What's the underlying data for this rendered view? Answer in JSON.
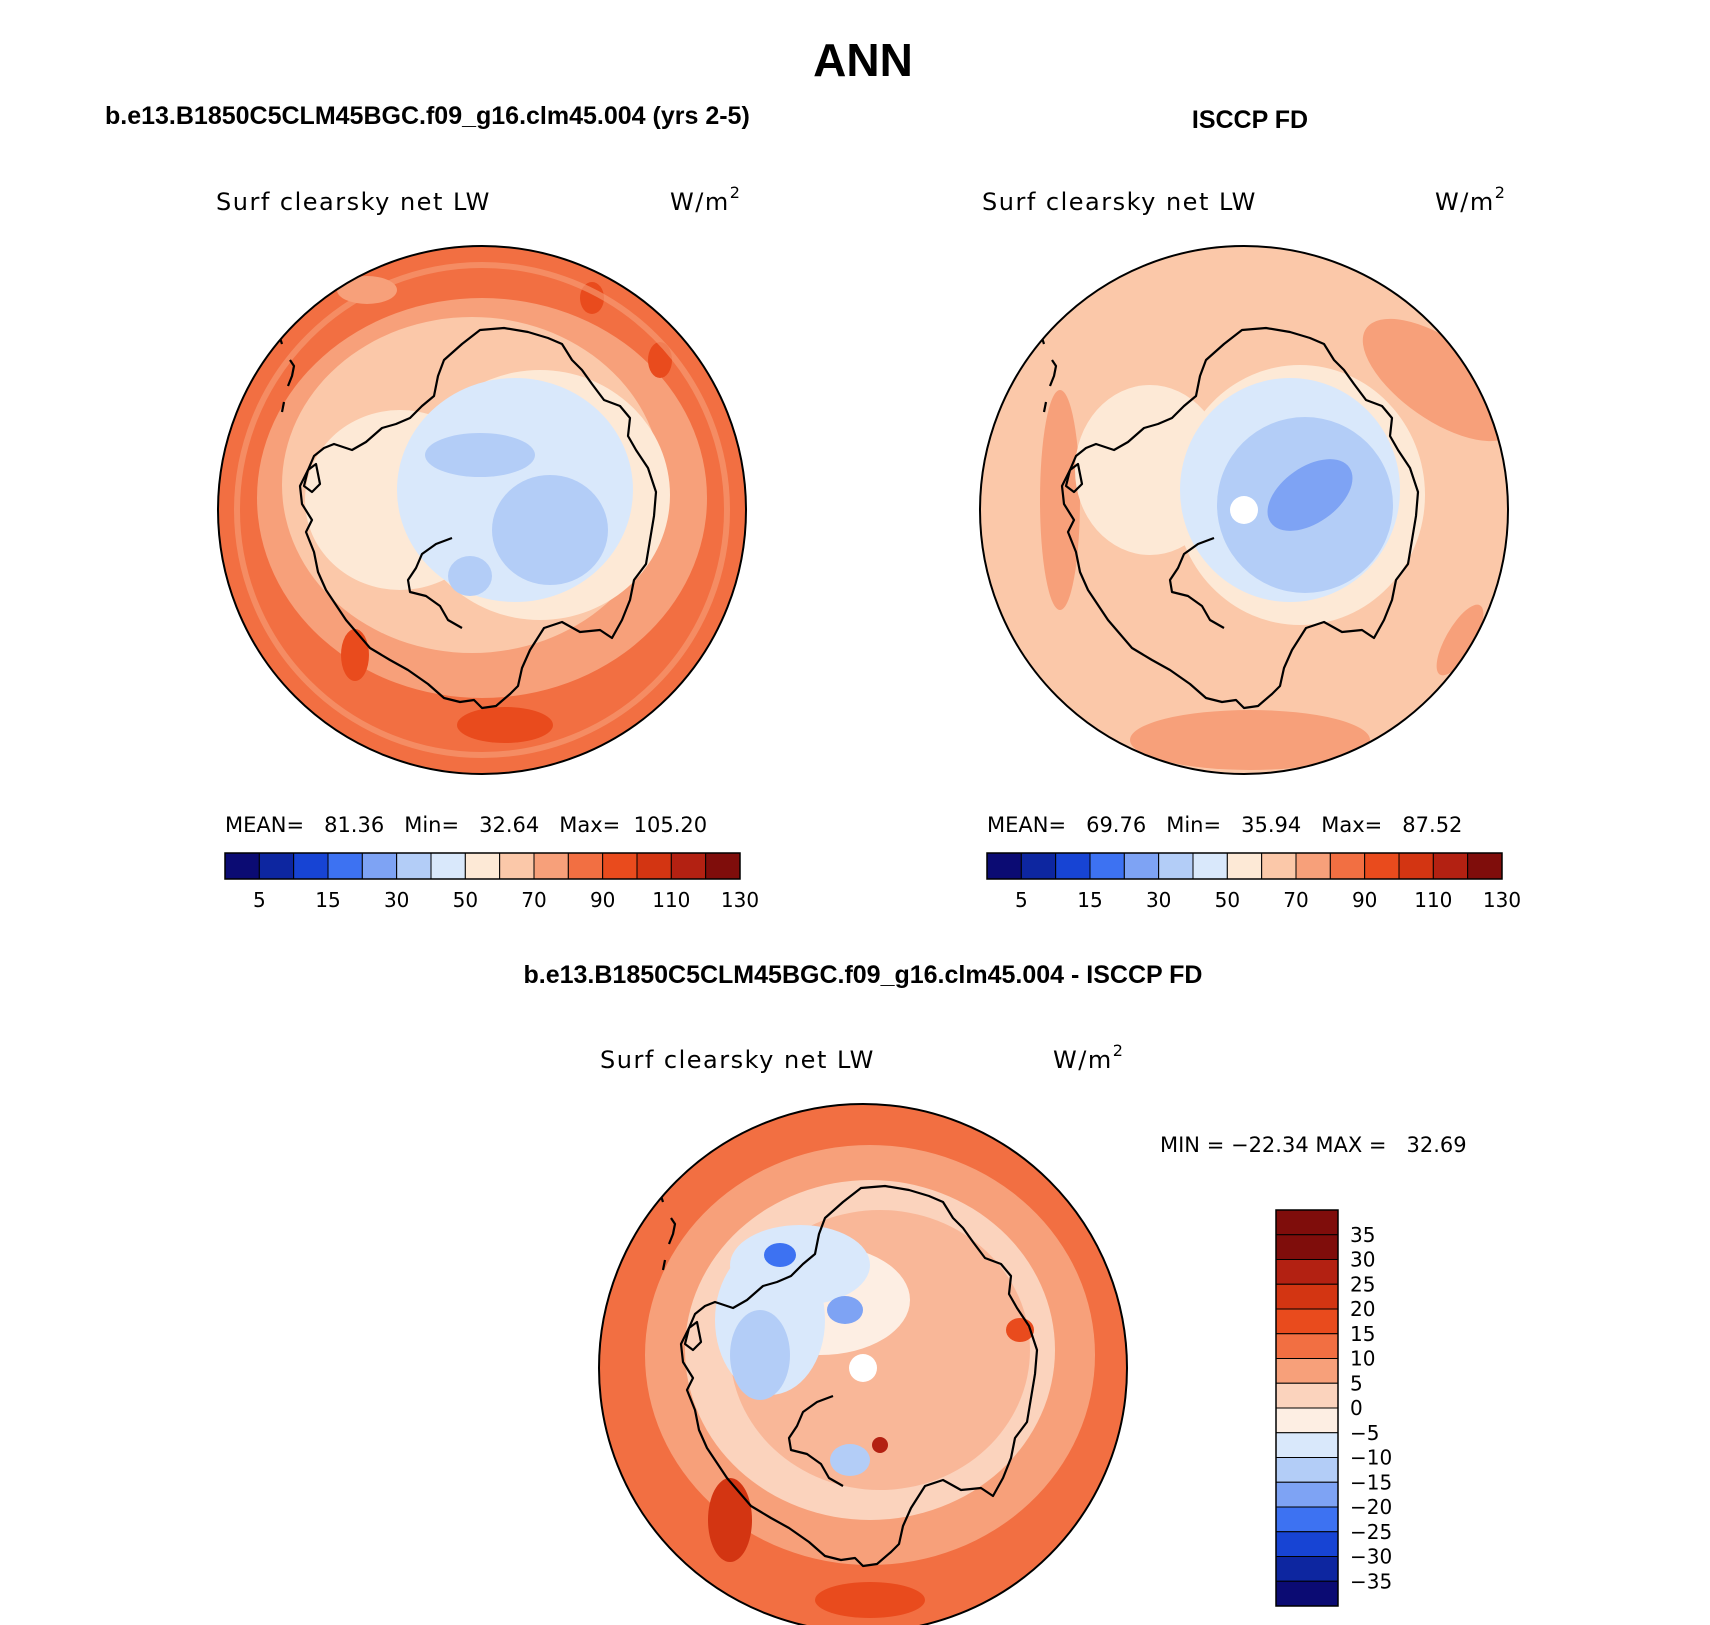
{
  "figure": {
    "title": "ANN"
  },
  "panels": [
    {
      "id": "model",
      "heading": "b.e13.B1850C5CLM45BGC.f09_g16.clm45.004 (yrs 2-5)",
      "variable": "Surf clearsky net LW",
      "units": "W/m",
      "units_sup": "2",
      "stats_text": "MEAN=   81.36   Min=   32.64   Max=  105.20",
      "stats": {
        "mean": 81.36,
        "min": 32.64,
        "max": 105.2
      },
      "colorbar_labels": [
        "5",
        "15",
        "30",
        "50",
        "70",
        "90",
        "110",
        "130"
      ]
    },
    {
      "id": "obs",
      "heading": "ISCCP FD",
      "variable": "Surf clearsky net LW",
      "units": "W/m",
      "units_sup": "2",
      "stats_text": "MEAN=   69.76   Min=   35.94   Max=   87.52",
      "stats": {
        "mean": 69.76,
        "min": 35.94,
        "max": 87.52
      },
      "colorbar_labels": [
        "5",
        "15",
        "30",
        "50",
        "70",
        "90",
        "110",
        "130"
      ]
    },
    {
      "id": "diff",
      "heading": "b.e13.B1850C5CLM45BGC.f09_g16.clm45.004 - ISCCP FD",
      "variable": "Surf clearsky net LW",
      "units": "W/m",
      "units_sup": "2",
      "stats_text": "MIN = −22.34 MAX =   32.69",
      "stats": {
        "min": -22.34,
        "max": 32.69
      },
      "colorbar_labels": [
        "35",
        "30",
        "25",
        "20",
        "15",
        "10",
        "5",
        "0",
        "−5",
        "−10",
        "−15",
        "−20",
        "−25",
        "−30",
        "−35"
      ]
    }
  ],
  "abs_colors": [
    "#0b0b73",
    "#0d26a0",
    "#1744d4",
    "#3d72f2",
    "#7ea3f4",
    "#b3cdf7",
    "#d9e8fb",
    "#fde9d6",
    "#fbc8a9",
    "#f7a07a",
    "#f26f42",
    "#e94b1d",
    "#d33512",
    "#b32112",
    "#7f0d0b"
  ],
  "diff_colors": [
    "#0b0b73",
    "#0d26a0",
    "#1744d4",
    "#3d72f2",
    "#7ea3f4",
    "#b3cdf7",
    "#d9e8fb",
    "#fdeee3",
    "#fbd3bd",
    "#f7a07a",
    "#f26f42",
    "#e94b1d",
    "#d33512",
    "#b32112",
    "#7f0d0b"
  ]
}
